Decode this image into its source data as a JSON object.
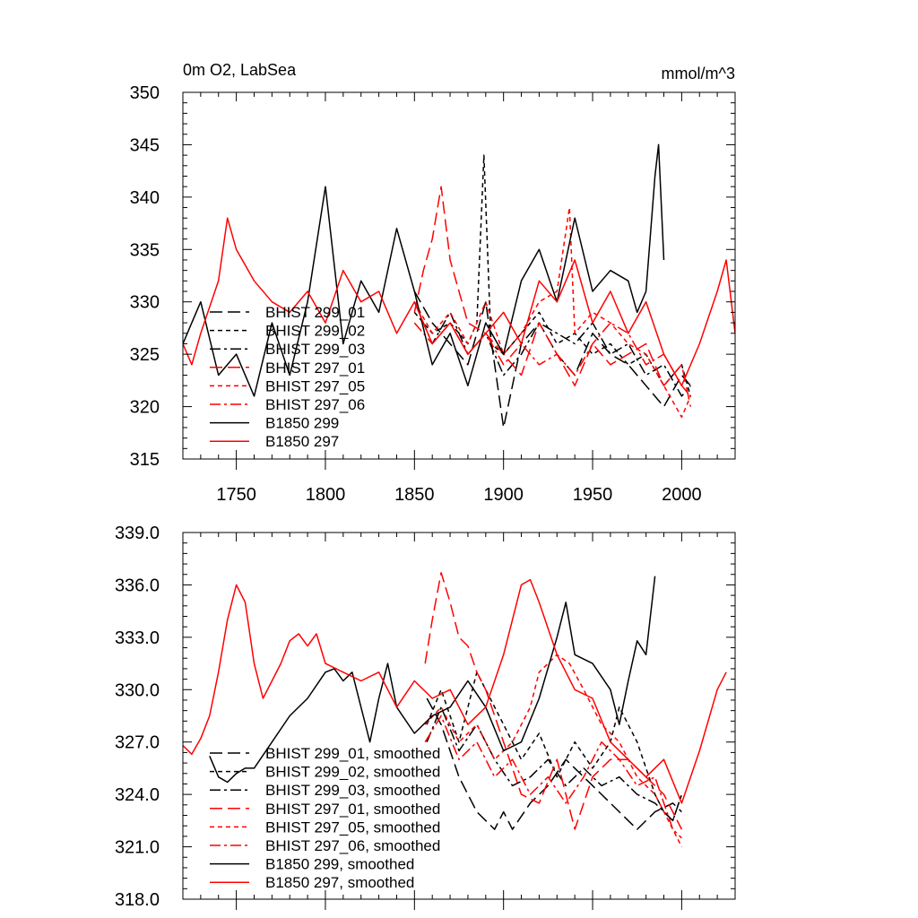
{
  "colors": {
    "black": "#000000",
    "red": "#ff0000"
  },
  "chart_data": [
    {
      "type": "line",
      "title_left": "0m O2, LabSea",
      "title_right": "mmol/m^3",
      "xlim": [
        1720,
        2030
      ],
      "ylim": [
        315,
        350
      ],
      "xticks": [
        1750,
        1800,
        1850,
        1900,
        1950,
        2000
      ],
      "yticks": [
        315,
        320,
        325,
        330,
        335,
        340,
        345,
        350
      ],
      "ytick_labels": [
        "315",
        "320",
        "325",
        "330",
        "335",
        "340",
        "345",
        "350"
      ],
      "legend_position": "lower-left",
      "series": [
        {
          "name": "BHIST 299_01",
          "color": "#000000",
          "dash": "long",
          "x": [
            1850,
            1860,
            1870,
            1880,
            1890,
            1900,
            1910,
            1920,
            1930,
            1940,
            1950,
            1960,
            1970,
            1980,
            1990,
            2000,
            2005
          ],
          "y": [
            331,
            328,
            326,
            324,
            330,
            318,
            326,
            328,
            325,
            323,
            327,
            325,
            324,
            322,
            320,
            323,
            322
          ]
        },
        {
          "name": "BHIST 299_02",
          "color": "#000000",
          "dash": "short",
          "x": [
            1850,
            1860,
            1870,
            1880,
            1885,
            1889,
            1893,
            1900,
            1910,
            1920,
            1930,
            1940,
            1950,
            1960,
            1970,
            1980,
            1990,
            2000,
            2005
          ],
          "y": [
            329,
            327,
            328,
            326,
            328,
            344,
            326,
            325,
            327,
            329,
            326,
            327,
            325,
            326,
            324,
            325,
            322,
            324,
            321
          ]
        },
        {
          "name": "BHIST 299_03",
          "color": "#000000",
          "dash": "dashdot",
          "x": [
            1850,
            1860,
            1870,
            1880,
            1890,
            1900,
            1910,
            1920,
            1930,
            1940,
            1950,
            1960,
            1970,
            1980,
            1990,
            2000,
            2005
          ],
          "y": [
            330,
            326,
            329,
            325,
            327,
            323,
            325,
            328,
            327,
            326,
            328,
            325,
            326,
            323,
            324,
            321,
            322
          ]
        },
        {
          "name": "BHIST 297_01",
          "color": "#ff0000",
          "dash": "long",
          "x": [
            1850,
            1855,
            1860,
            1865,
            1870,
            1880,
            1890,
            1900,
            1910,
            1920,
            1930,
            1940,
            1950,
            1960,
            1970,
            1980,
            1990,
            2000,
            2005
          ],
          "y": [
            329,
            333,
            336,
            341,
            334,
            328,
            327,
            325,
            323,
            328,
            325,
            322,
            326,
            324,
            325,
            326,
            322,
            324,
            320
          ]
        },
        {
          "name": "BHIST 297_05",
          "color": "#ff0000",
          "dash": "short",
          "x": [
            1850,
            1860,
            1870,
            1880,
            1890,
            1900,
            1910,
            1920,
            1930,
            1937,
            1940,
            1950,
            1960,
            1970,
            1980,
            1990,
            2000,
            2005
          ],
          "y": [
            330,
            327,
            329,
            326,
            330,
            325,
            327,
            330,
            331,
            339,
            327,
            329,
            328,
            326,
            325,
            322,
            319,
            321
          ]
        },
        {
          "name": "BHIST 297_06",
          "color": "#ff0000",
          "dash": "dashdot",
          "x": [
            1850,
            1860,
            1870,
            1880,
            1890,
            1900,
            1910,
            1920,
            1930,
            1940,
            1950,
            1960,
            1970,
            1980,
            1990,
            2000,
            2005
          ],
          "y": [
            328,
            326,
            328,
            325,
            327,
            324,
            326,
            324,
            325,
            323,
            326,
            328,
            327,
            324,
            325,
            322,
            321
          ]
        },
        {
          "name": "B1850 299",
          "color": "#000000",
          "dash": "solid",
          "x": [
            1720,
            1725,
            1730,
            1740,
            1750,
            1760,
            1770,
            1780,
            1790,
            1800,
            1810,
            1820,
            1830,
            1840,
            1850,
            1860,
            1870,
            1880,
            1890,
            1900,
            1910,
            1920,
            1930,
            1940,
            1950,
            1960,
            1970,
            1975,
            1980,
            1985,
            1987,
            1990
          ],
          "y": [
            326,
            328,
            330,
            323,
            325,
            321,
            328,
            323,
            330,
            341,
            326,
            332,
            329,
            337,
            331,
            324,
            327,
            322,
            328,
            325,
            332,
            335,
            330,
            338,
            331,
            333,
            332,
            329,
            331,
            342,
            345,
            334
          ]
        },
        {
          "name": "B1850 297",
          "color": "#ff0000",
          "dash": "solid",
          "x": [
            1720,
            1725,
            1730,
            1740,
            1745,
            1750,
            1760,
            1770,
            1780,
            1790,
            1800,
            1810,
            1820,
            1830,
            1840,
            1850,
            1860,
            1870,
            1880,
            1890,
            1900,
            1910,
            1920,
            1930,
            1940,
            1950,
            1960,
            1970,
            1980,
            1990,
            2000,
            2010,
            2020,
            2025,
            2030
          ],
          "y": [
            326,
            324,
            327,
            332,
            338,
            335,
            332,
            330,
            329,
            331,
            328,
            333,
            330,
            331,
            327,
            330,
            326,
            328,
            325,
            327,
            329,
            326,
            332,
            330,
            334,
            328,
            331,
            327,
            330,
            325,
            322,
            326,
            331,
            334,
            327
          ]
        }
      ],
      "legend": [
        "BHIST 299_01",
        "BHIST 299_02",
        "BHIST 299_03",
        "BHIST 297_01",
        "BHIST 297_05",
        "BHIST 297_06",
        "B1850 299",
        "B1850 297"
      ]
    },
    {
      "type": "line",
      "xlim": [
        1720,
        2030
      ],
      "ylim": [
        318,
        339
      ],
      "xticks": [
        1750,
        1800,
        1850,
        1900,
        1950,
        2000
      ],
      "yticks": [
        318,
        321,
        324,
        327,
        330,
        333,
        336,
        339
      ],
      "ytick_labels": [
        "318.0",
        "321.0",
        "324.0",
        "327.0",
        "330.0",
        "333.0",
        "336.0",
        "339.0"
      ],
      "legend_position": "lower-left",
      "series": [
        {
          "name": "BHIST 299_01, smoothed",
          "color": "#000000",
          "dash": "long",
          "x": [
            1857,
            1865,
            1875,
            1885,
            1895,
            1900,
            1905,
            1915,
            1925,
            1935,
            1945,
            1955,
            1965,
            1975,
            1985,
            1995,
            2000
          ],
          "y": [
            329.5,
            328,
            325,
            323,
            322,
            323,
            322,
            323.5,
            324.5,
            326,
            325,
            324,
            323,
            322,
            323,
            323.5,
            323
          ]
        },
        {
          "name": "BHIST 299_02, smoothed",
          "color": "#000000",
          "dash": "short",
          "x": [
            1857,
            1865,
            1875,
            1885,
            1890,
            1900,
            1910,
            1920,
            1930,
            1940,
            1950,
            1960,
            1965,
            1975,
            1985,
            1990,
            1995,
            2000
          ],
          "y": [
            328,
            330,
            327,
            331,
            330,
            328,
            326,
            327.5,
            325,
            327,
            325.5,
            327,
            329,
            327,
            324,
            323,
            322.5,
            324
          ]
        },
        {
          "name": "BHIST 299_03, smoothed",
          "color": "#000000",
          "dash": "dashdot",
          "x": [
            1857,
            1865,
            1875,
            1885,
            1895,
            1905,
            1915,
            1925,
            1935,
            1945,
            1955,
            1965,
            1975,
            1985,
            1995,
            2000
          ],
          "y": [
            327,
            329,
            326.5,
            328,
            326,
            324.5,
            325,
            326,
            324.5,
            325.5,
            324.5,
            325,
            324,
            323.5,
            322.5,
            324
          ]
        },
        {
          "name": "BHIST 297_01, smoothed",
          "color": "#ff0000",
          "dash": "long",
          "x": [
            1856,
            1860,
            1865,
            1870,
            1875,
            1880,
            1885,
            1890,
            1900,
            1910,
            1920,
            1930,
            1940,
            1950,
            1960,
            1970,
            1980,
            1990,
            2000
          ],
          "y": [
            331.5,
            334,
            336.7,
            335,
            333,
            332.5,
            331,
            330,
            327,
            324,
            323.5,
            326,
            322,
            325,
            326,
            326,
            325,
            324,
            322
          ]
        },
        {
          "name": "BHIST 297_05, smoothed",
          "color": "#ff0000",
          "dash": "short",
          "x": [
            1856,
            1865,
            1875,
            1885,
            1895,
            1905,
            1915,
            1920,
            1930,
            1937,
            1945,
            1955,
            1965,
            1975,
            1985,
            1995,
            2000
          ],
          "y": [
            328,
            329,
            327,
            328,
            326,
            327,
            329,
            331,
            332,
            331.5,
            330,
            328,
            327,
            325,
            324,
            322,
            321
          ]
        },
        {
          "name": "BHIST 297_06, smoothed",
          "color": "#ff0000",
          "dash": "dashdot",
          "x": [
            1856,
            1865,
            1875,
            1885,
            1895,
            1905,
            1915,
            1925,
            1935,
            1945,
            1955,
            1965,
            1975,
            1985,
            1995,
            2000
          ],
          "y": [
            327,
            328.5,
            326,
            327,
            325,
            326,
            324,
            325,
            323.5,
            325,
            327,
            326,
            324.5,
            325,
            322,
            321.5
          ]
        },
        {
          "name": "B1850 299, smoothed",
          "color": "#000000",
          "dash": "solid",
          "x": [
            1735,
            1740,
            1745,
            1750,
            1755,
            1760,
            1770,
            1780,
            1790,
            1800,
            1805,
            1810,
            1815,
            1820,
            1825,
            1830,
            1835,
            1840,
            1850,
            1860,
            1870,
            1880,
            1890,
            1900,
            1910,
            1920,
            1930,
            1935,
            1940,
            1950,
            1960,
            1965,
            1970,
            1975,
            1980,
            1985
          ],
          "y": [
            326.2,
            325,
            324.7,
            325.2,
            325.5,
            325.5,
            327,
            328.5,
            329.5,
            331,
            331.2,
            330.5,
            331,
            329,
            327,
            329.5,
            331.5,
            329,
            327.5,
            328.5,
            329,
            330.5,
            329,
            326.5,
            327,
            329.5,
            333,
            335,
            332,
            331.5,
            330,
            328,
            330.5,
            332.8,
            332,
            336.5
          ]
        },
        {
          "name": "B1850 297, smoothed",
          "color": "#ff0000",
          "dash": "solid",
          "x": [
            1720,
            1725,
            1730,
            1735,
            1740,
            1745,
            1750,
            1755,
            1760,
            1765,
            1770,
            1775,
            1780,
            1785,
            1790,
            1795,
            1800,
            1810,
            1820,
            1830,
            1840,
            1850,
            1860,
            1870,
            1880,
            1890,
            1900,
            1910,
            1915,
            1920,
            1930,
            1940,
            1950,
            1960,
            1970,
            1980,
            1990,
            2000,
            2010,
            2020,
            2025
          ],
          "y": [
            326.8,
            326.3,
            327.2,
            328.5,
            331,
            334,
            336,
            335,
            331.5,
            329.5,
            330.5,
            331.5,
            332.8,
            333.2,
            332.5,
            333.2,
            331.5,
            331,
            330.5,
            331,
            329,
            330.5,
            329.5,
            330,
            328,
            329,
            332,
            336,
            336.3,
            335,
            332,
            330,
            329.5,
            327,
            326,
            325,
            326,
            323.5,
            326.5,
            330,
            331
          ]
        }
      ],
      "legend": [
        "BHIST 299_01, smoothed",
        "BHIST 299_02, smoothed",
        "BHIST 299_03, smoothed",
        "BHIST 297_01, smoothed",
        "BHIST 297_05, smoothed",
        "BHIST 297_06, smoothed",
        "B1850 299, smoothed",
        "B1850 297, smoothed"
      ]
    }
  ]
}
